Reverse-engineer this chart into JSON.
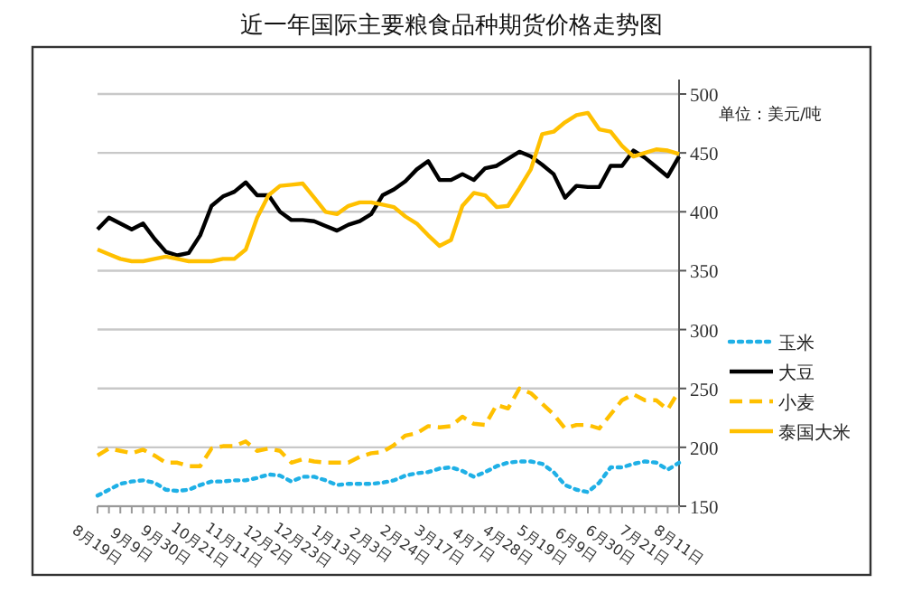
{
  "chart_data": {
    "type": "line",
    "title": "近一年国际主要粮食品种期货价格走势图",
    "ylabel": "单位：美元/吨",
    "categories": [
      "8月19日",
      null,
      null,
      "9月9日",
      null,
      null,
      "9月30日",
      null,
      null,
      "10月21日",
      null,
      null,
      "11月11日",
      null,
      null,
      "12月2日",
      null,
      null,
      "12月23日",
      null,
      null,
      "1月13日",
      null,
      null,
      "2月3日",
      null,
      null,
      "2月24日",
      null,
      null,
      "3月17日",
      null,
      null,
      "4月7日",
      null,
      null,
      "4月28日",
      null,
      null,
      "5月19日",
      null,
      null,
      "6月9日",
      null,
      null,
      "6月30日",
      null,
      null,
      "7月21日",
      null,
      null,
      "8月11日"
    ],
    "ylim": [
      150,
      500
    ],
    "yticks": [
      150,
      200,
      250,
      300,
      350,
      400,
      450,
      500
    ],
    "grid": "y",
    "legend": "right",
    "marker": "none",
    "series": [
      {
        "name": "玉米",
        "color": "#1fb0e6",
        "line_style": "dotted",
        "values": [
          159,
          164,
          169,
          171,
          172,
          170,
          164,
          163,
          164,
          168,
          171,
          171,
          172,
          172,
          174,
          177,
          176,
          171,
          175,
          175,
          172,
          168,
          169,
          169,
          169,
          170,
          172,
          176,
          178,
          179,
          182,
          183,
          180,
          175,
          179,
          184,
          187,
          188,
          188,
          186,
          179,
          168,
          164,
          162,
          170,
          183,
          183,
          186,
          188,
          187,
          181,
          187
        ]
      },
      {
        "name": "大豆",
        "color": "#000000",
        "line_style": "solid",
        "values": [
          385,
          395,
          390,
          385,
          390,
          377,
          366,
          363,
          365,
          380,
          405,
          413,
          417,
          425,
          414,
          414,
          400,
          393,
          393,
          392,
          388,
          384,
          389,
          392,
          398,
          414,
          419,
          426,
          436,
          443,
          427,
          427,
          432,
          427,
          437,
          439,
          445,
          451,
          447,
          440,
          432,
          412,
          422,
          421,
          421,
          439,
          439,
          452,
          446,
          438,
          430,
          447
        ]
      },
      {
        "name": "小麦",
        "color": "#ffc000",
        "line_style": "dashed",
        "values": [
          193,
          199,
          197,
          195,
          198,
          193,
          187,
          187,
          184,
          184,
          199,
          201,
          201,
          205,
          197,
          199,
          197,
          187,
          190,
          188,
          187,
          187,
          187,
          192,
          195,
          196,
          202,
          210,
          212,
          218,
          217,
          218,
          226,
          220,
          219,
          236,
          233,
          250,
          246,
          237,
          228,
          216,
          219,
          219,
          216,
          228,
          240,
          245,
          240,
          240,
          232,
          248
        ]
      },
      {
        "name": "泰国大米",
        "color": "#ffc000",
        "line_style": "solid",
        "values": [
          368,
          364,
          360,
          358,
          358,
          360,
          362,
          360,
          358,
          358,
          358,
          360,
          360,
          368,
          395,
          414,
          422,
          423,
          424,
          412,
          400,
          398,
          405,
          408,
          408,
          406,
          404,
          396,
          390,
          380,
          371,
          376,
          405,
          416,
          414,
          404,
          405,
          420,
          436,
          466,
          468,
          476,
          482,
          484,
          470,
          468,
          456,
          447,
          450,
          453,
          452,
          449
        ]
      }
    ]
  }
}
